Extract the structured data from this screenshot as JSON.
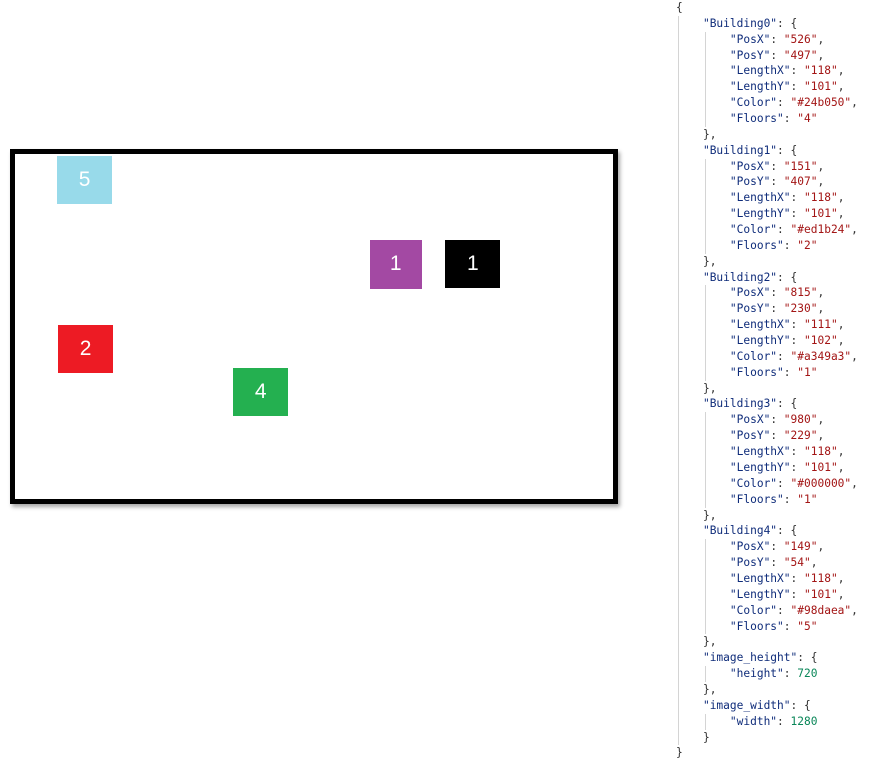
{
  "buildings": [
    {
      "key": "Building0",
      "PosX": "526",
      "PosY": "497",
      "LengthX": "118",
      "LengthY": "101",
      "Color": "#24b050",
      "Floors": "4"
    },
    {
      "key": "Building1",
      "PosX": "151",
      "PosY": "407",
      "LengthX": "118",
      "LengthY": "101",
      "Color": "#ed1b24",
      "Floors": "2"
    },
    {
      "key": "Building2",
      "PosX": "815",
      "PosY": "230",
      "LengthX": "111",
      "LengthY": "102",
      "Color": "#a349a3",
      "Floors": "1"
    },
    {
      "key": "Building3",
      "PosX": "980",
      "PosY": "229",
      "LengthX": "118",
      "LengthY": "101",
      "Color": "#000000",
      "Floors": "1"
    },
    {
      "key": "Building4",
      "PosX": "149",
      "PosY": "54",
      "LengthX": "118",
      "LengthY": "101",
      "Color": "#98daea",
      "Floors": "5"
    }
  ],
  "image_height": {
    "key": "image_height",
    "field": "height",
    "value": 720
  },
  "image_width": {
    "key": "image_width",
    "field": "width",
    "value": 1280
  }
}
